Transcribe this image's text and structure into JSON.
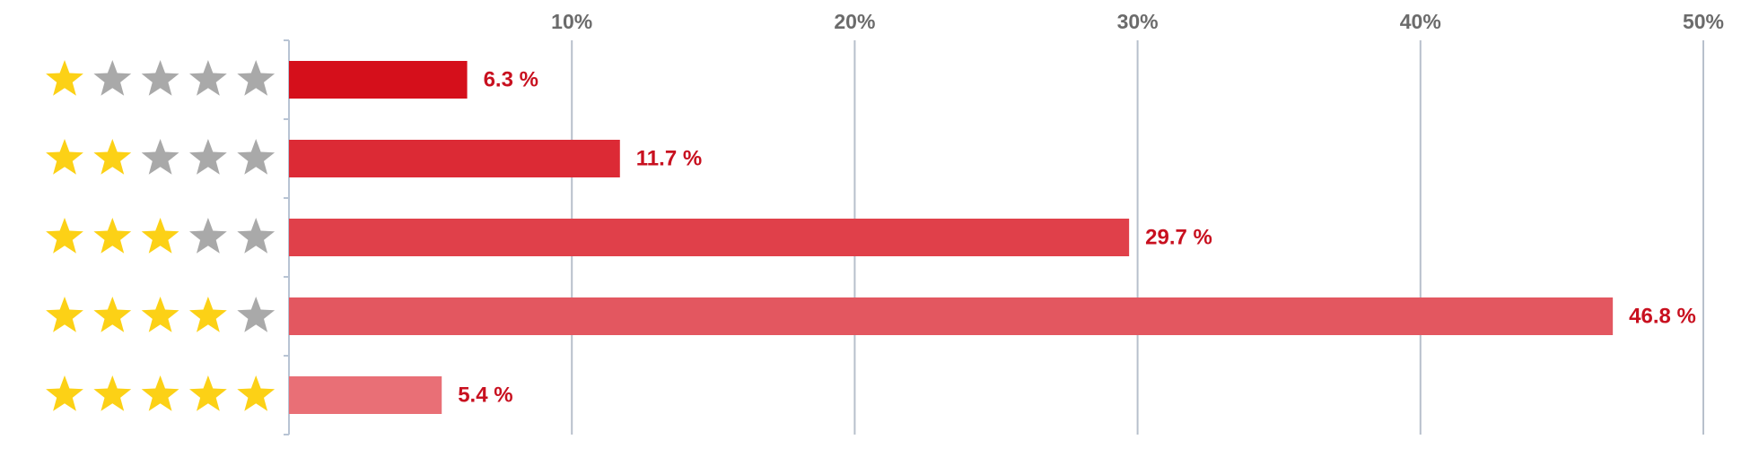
{
  "chart_data": {
    "type": "bar",
    "orientation": "horizontal",
    "star_counts": [
      1,
      2,
      3,
      4,
      5
    ],
    "max_stars": 5,
    "values": [
      6.3,
      11.7,
      29.7,
      46.8,
      5.4
    ],
    "value_labels": [
      "6.3 %",
      "11.7 %",
      "29.7 %",
      "46.8 %",
      "5.4 %"
    ],
    "colors": [
      "#d50f1b",
      "#dc2a35",
      "#e0404a",
      "#e35760",
      "#e96f76"
    ],
    "star_color": "#fcd116",
    "empty_star_color": "#a9a9a9",
    "xlim": [
      0,
      50
    ],
    "xticks": [
      {
        "value": 10,
        "label": "10%"
      },
      {
        "value": 20,
        "label": "20%"
      },
      {
        "value": 30,
        "label": "30%"
      },
      {
        "value": 40,
        "label": "40%"
      },
      {
        "value": 50,
        "label": "50%"
      }
    ],
    "grid": true
  }
}
